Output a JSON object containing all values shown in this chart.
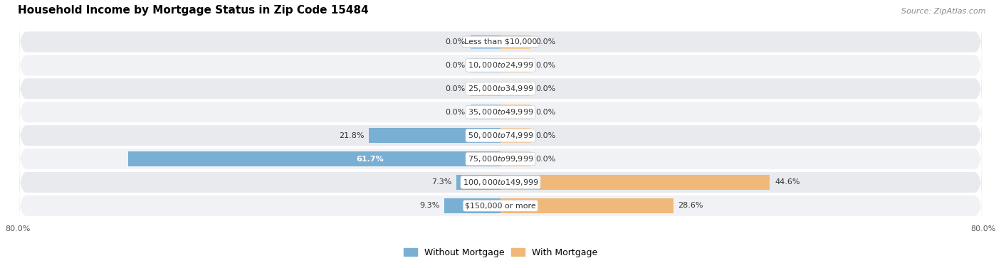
{
  "title": "Household Income by Mortgage Status in Zip Code 15484",
  "source": "Source: ZipAtlas.com",
  "categories": [
    "Less than $10,000",
    "$10,000 to $24,999",
    "$25,000 to $34,999",
    "$35,000 to $49,999",
    "$50,000 to $74,999",
    "$75,000 to $99,999",
    "$100,000 to $149,999",
    "$150,000 or more"
  ],
  "without_mortgage": [
    0.0,
    0.0,
    0.0,
    0.0,
    21.8,
    61.7,
    7.3,
    9.3
  ],
  "with_mortgage": [
    0.0,
    0.0,
    0.0,
    0.0,
    0.0,
    0.0,
    44.6,
    28.6
  ],
  "color_without": "#7aafd4",
  "color_with": "#f0b87a",
  "color_without_small": "#a8cce4",
  "color_with_small": "#f5d0a0",
  "xlim": [
    -80,
    80
  ],
  "bar_height": 0.62,
  "row_bg": "#e8eaed",
  "row_bg_alt": "#f0f2f5",
  "legend_labels": [
    "Without Mortgage",
    "With Mortgage"
  ],
  "title_fontsize": 11,
  "source_fontsize": 8,
  "label_fontsize": 8,
  "category_fontsize": 8,
  "stub_value": 5.0,
  "x_left_label": "80.0%",
  "x_right_label": "80.0%"
}
